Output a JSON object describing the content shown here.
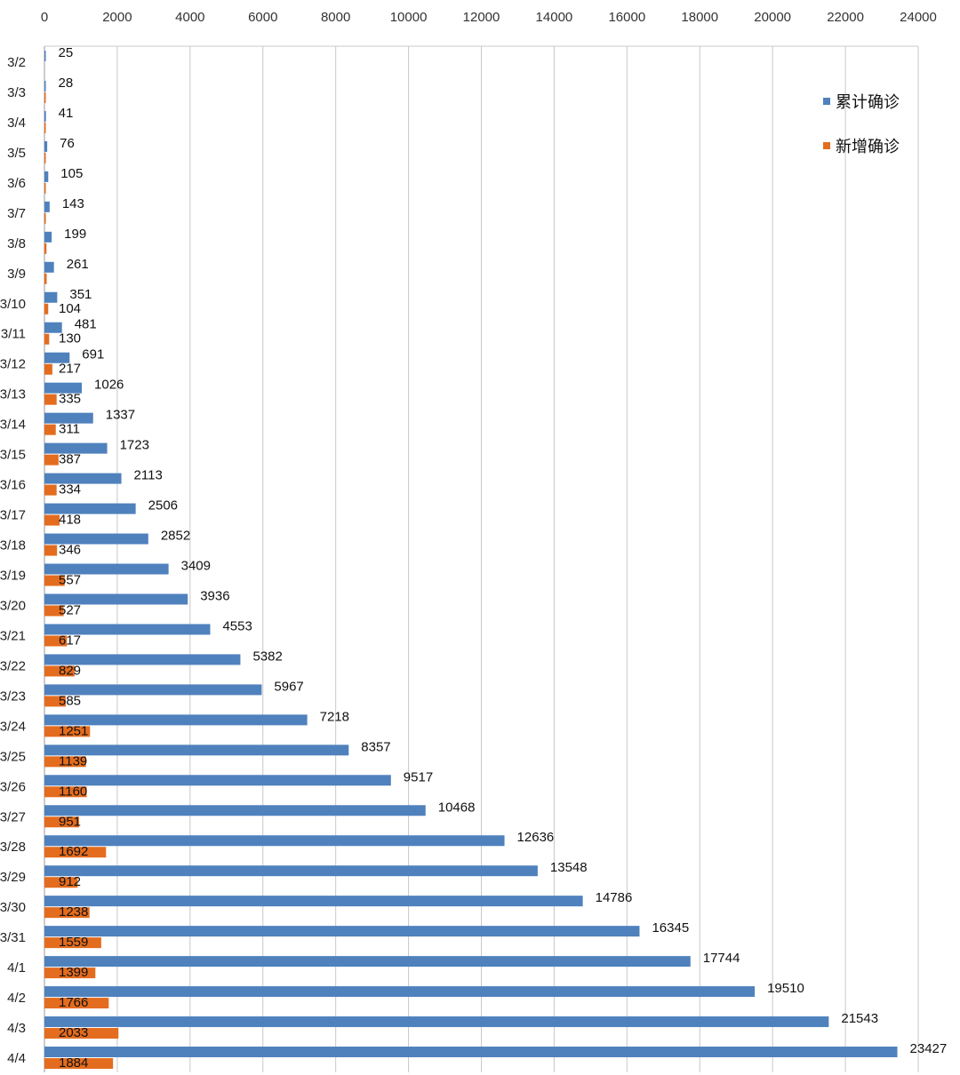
{
  "chart_data": {
    "type": "bar",
    "orientation": "horizontal",
    "title": "",
    "xlabel": "",
    "ylabel": "",
    "xlim": [
      0,
      24000
    ],
    "tick_step": 2000,
    "x_ticks": [
      "0",
      "2000",
      "4000",
      "6000",
      "8000",
      "10000",
      "12000",
      "14000",
      "16000",
      "18000",
      "20000",
      "22000",
      "24000"
    ],
    "x_axis_position": "top",
    "grid": true,
    "legend_position": "top-right",
    "categories": [
      "3/2",
      "3/3",
      "3/4",
      "3/5",
      "3/6",
      "3/7",
      "3/8",
      "3/9",
      "3/10",
      "3/11",
      "3/12",
      "3/13",
      "3/14",
      "3/15",
      "3/16",
      "3/17",
      "3/18",
      "3/19",
      "3/20",
      "3/21",
      "3/22",
      "3/23",
      "3/24",
      "3/25",
      "3/26",
      "3/27",
      "3/28",
      "3/29",
      "3/30",
      "3/31",
      "4/1",
      "4/2",
      "4/3",
      "4/4"
    ],
    "series": [
      {
        "name": "累计确诊",
        "color": "#4f81bd",
        "values": [
          25,
          28,
          41,
          76,
          105,
          143,
          199,
          261,
          351,
          481,
          691,
          1026,
          1337,
          1723,
          2113,
          2506,
          2852,
          3409,
          3936,
          4553,
          5382,
          5967,
          7218,
          8357,
          9517,
          10468,
          12636,
          13548,
          14786,
          16345,
          17744,
          19510,
          21543,
          23427
        ],
        "labels": [
          "25",
          "28",
          "41",
          "76",
          "105",
          "143",
          "199",
          "261",
          "351",
          "481",
          "691",
          "1026",
          "1337",
          "1723",
          "2113",
          "2506",
          "2852",
          "3409",
          "3936",
          "4553",
          "5382",
          "5967",
          "7218",
          "8357",
          "9517",
          "10468",
          "12636",
          "13548",
          "14786",
          "16345",
          "17744",
          "19510",
          "21543",
          "23427"
        ]
      },
      {
        "name": "新增确诊",
        "color": "#e46c1e",
        "values": [
          null,
          3,
          13,
          35,
          29,
          38,
          56,
          62,
          104,
          130,
          217,
          335,
          311,
          387,
          334,
          418,
          346,
          557,
          527,
          617,
          829,
          585,
          1251,
          1139,
          1160,
          951,
          1692,
          912,
          1238,
          1559,
          1399,
          1766,
          2033,
          1884
        ],
        "labels": [
          null,
          null,
          null,
          null,
          null,
          null,
          null,
          null,
          "104",
          "130",
          "217",
          "335",
          "311",
          "387",
          "334",
          "418",
          "346",
          "557",
          "527",
          "617",
          "829",
          "585",
          "1251",
          "1139",
          "1160",
          "951",
          "1692",
          "912",
          "1238",
          "1559",
          "1399",
          "1766",
          "2033",
          "1884"
        ]
      }
    ]
  }
}
